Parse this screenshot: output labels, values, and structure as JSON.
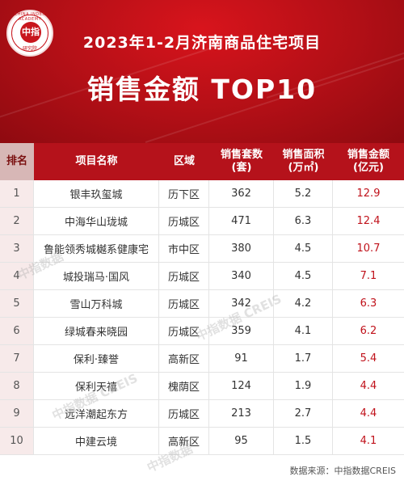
{
  "header": {
    "title_line1": "2023年1-2月济南商品住宅项目",
    "title_line2": "销售金额 TOP10",
    "logo": {
      "arc_text": "CHINA INDEX ACADEMY",
      "core_text": "中指",
      "bottom_text": "研究院"
    },
    "colors": {
      "banner": "#b10f16",
      "header_row": "#b5121b",
      "amount_text": "#c0121b"
    }
  },
  "table": {
    "columns": [
      "排名",
      "项目名称",
      "区域",
      "销售套数\n(套)",
      "销售面积\n(万㎡)",
      "销售金额\n(亿元)"
    ],
    "rows": [
      {
        "rank": "1",
        "name": "银丰玖玺城",
        "district": "历下区",
        "units": "362",
        "area": "5.2",
        "amount": "12.9"
      },
      {
        "rank": "2",
        "name": "中海华山珑城",
        "district": "历城区",
        "units": "471",
        "area": "6.3",
        "amount": "12.4"
      },
      {
        "rank": "3",
        "name": "鲁能领秀城樾系健康宅",
        "district": "市中区",
        "units": "380",
        "area": "4.5",
        "amount": "10.7"
      },
      {
        "rank": "4",
        "name": "城投瑞马·国风",
        "district": "历城区",
        "units": "340",
        "area": "4.5",
        "amount": "7.1"
      },
      {
        "rank": "5",
        "name": "雪山万科城",
        "district": "历城区",
        "units": "342",
        "area": "4.2",
        "amount": "6.3"
      },
      {
        "rank": "6",
        "name": "绿城春来晓园",
        "district": "历城区",
        "units": "359",
        "area": "4.1",
        "amount": "6.2"
      },
      {
        "rank": "7",
        "name": "保利·臻誉",
        "district": "高新区",
        "units": "91",
        "area": "1.7",
        "amount": "5.4"
      },
      {
        "rank": "8",
        "name": "保利天禧",
        "district": "槐荫区",
        "units": "124",
        "area": "1.9",
        "amount": "4.4"
      },
      {
        "rank": "9",
        "name": "远洋潮起东方",
        "district": "历城区",
        "units": "213",
        "area": "2.7",
        "amount": "4.4"
      },
      {
        "rank": "10",
        "name": "中建云境",
        "district": "高新区",
        "units": "95",
        "area": "1.5",
        "amount": "4.1"
      }
    ]
  },
  "watermarks": [
    "中指数据",
    "中指数据 CREIS"
  ],
  "footer": {
    "source": "数据来源：中指数据CREIS"
  }
}
